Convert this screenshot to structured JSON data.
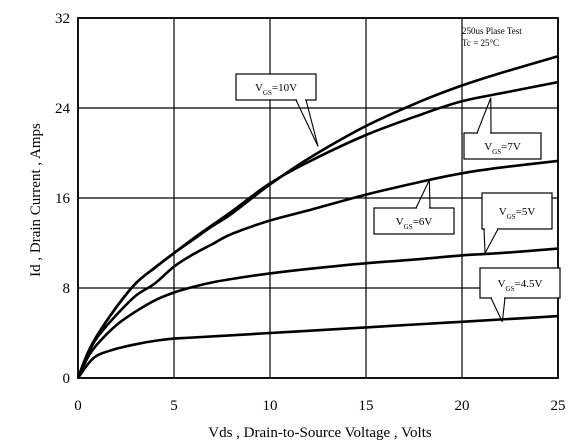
{
  "chart_data": {
    "type": "line",
    "title": "",
    "xlabel": "Vds , Drain-to-Source Voltage , Volts",
    "ylabel": "Id , Drain Current , Amps",
    "xlim": [
      0,
      25
    ],
    "ylim": [
      0,
      32
    ],
    "xticks": [
      "0",
      "5",
      "10",
      "15",
      "20",
      "25"
    ],
    "yticks": [
      "0",
      "8",
      "16",
      "24",
      "32"
    ],
    "grid": true,
    "annotations": [
      "250us Plase Test",
      "Tc = 25°C"
    ],
    "series": [
      {
        "name": "VGS=10V",
        "label_main": "V",
        "label_sub": "GS",
        "label_tail": "=10V",
        "x": [
          0,
          0.5,
          1,
          2,
          3,
          4,
          5,
          6,
          7,
          8,
          10,
          12,
          15,
          18,
          20,
          22,
          25
        ],
        "y": [
          0,
          2.2,
          3.8,
          6.3,
          8.4,
          9.8,
          11.1,
          12.3,
          13.5,
          14.6,
          17.2,
          19.5,
          22.4,
          24.7,
          26.0,
          27.1,
          28.6
        ]
      },
      {
        "name": "VGS=7V",
        "label_main": "V",
        "label_sub": "GS",
        "label_tail": "=7V",
        "x": [
          0,
          0.5,
          1,
          2,
          3,
          4,
          5,
          6,
          7,
          8,
          10,
          12,
          15,
          18,
          20,
          22,
          25
        ],
        "y": [
          0,
          2.2,
          3.8,
          6.3,
          8.4,
          9.8,
          11.1,
          12.4,
          13.6,
          14.8,
          17.3,
          19.2,
          21.6,
          23.5,
          24.6,
          25.3,
          26.3
        ]
      },
      {
        "name": "VGS=6V",
        "label_main": "V",
        "label_sub": "GS",
        "label_tail": "=6V",
        "x": [
          0,
          0.5,
          1,
          2,
          3,
          4,
          5,
          6,
          7,
          8,
          10,
          12,
          15,
          18,
          20,
          22,
          25
        ],
        "y": [
          0,
          2.1,
          3.6,
          5.6,
          7.3,
          8.4,
          9.9,
          11.0,
          11.9,
          12.8,
          14.0,
          14.9,
          16.3,
          17.5,
          18.2,
          18.7,
          19.3
        ]
      },
      {
        "name": "VGS=5V",
        "label_main": "V",
        "label_sub": "GS",
        "label_tail": "=5V",
        "x": [
          0,
          0.5,
          1,
          2,
          3,
          4,
          5,
          6,
          7,
          8,
          10,
          12,
          15,
          18,
          20,
          22,
          25
        ],
        "y": [
          0,
          1.8,
          3.0,
          4.7,
          5.9,
          6.9,
          7.6,
          8.1,
          8.5,
          8.8,
          9.3,
          9.7,
          10.2,
          10.6,
          10.9,
          11.1,
          11.5
        ]
      },
      {
        "name": "VGS=4.5V",
        "label_main": "V",
        "label_sub": "GS",
        "label_tail": "=4.5V",
        "x": [
          0,
          0.5,
          1,
          2,
          3,
          4,
          5,
          6,
          8,
          10,
          12,
          15,
          18,
          20,
          22,
          25
        ],
        "y": [
          0,
          1.2,
          2.0,
          2.6,
          3.0,
          3.3,
          3.5,
          3.6,
          3.8,
          4.0,
          4.2,
          4.5,
          4.8,
          5.0,
          5.2,
          5.5
        ]
      }
    ]
  }
}
